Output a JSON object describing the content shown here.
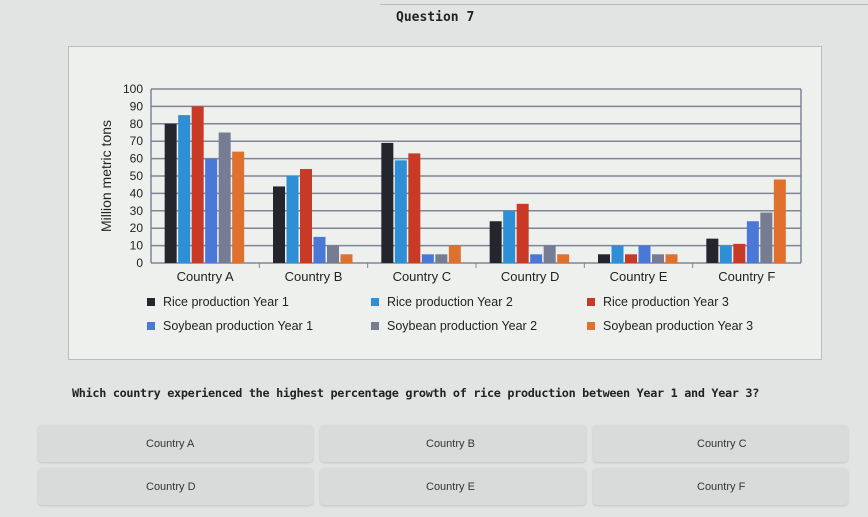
{
  "question_number": "Question 7",
  "question_text": "Which country experienced the highest percentage growth of rice production between Year 1 and Year 3?",
  "options": [
    "Country A",
    "Country B",
    "Country C",
    "Country D",
    "Country E",
    "Country F"
  ],
  "chart_data": {
    "type": "bar",
    "ylabel": "Million metric tons",
    "ylim": [
      0,
      100
    ],
    "yticks": [
      0,
      10,
      20,
      30,
      40,
      50,
      60,
      70,
      80,
      90,
      100
    ],
    "grid": true,
    "legend_position": "bottom",
    "categories": [
      "Country A",
      "Country B",
      "Country C",
      "Country D",
      "Country E",
      "Country F"
    ],
    "series": [
      {
        "name": "Rice production Year 1",
        "color": "#25252e",
        "values": [
          80,
          44,
          69,
          24,
          5,
          14
        ]
      },
      {
        "name": "Rice production Year 2",
        "color": "#2f8fd6",
        "values": [
          85,
          50,
          59,
          30,
          10,
          10
        ]
      },
      {
        "name": "Rice production Year 3",
        "color": "#c83a26",
        "values": [
          90,
          54,
          63,
          34,
          5,
          11
        ]
      },
      {
        "name": "Soybean production Year 1",
        "color": "#4a78d6",
        "values": [
          60,
          15,
          5,
          5,
          10,
          24
        ]
      },
      {
        "name": "Soybean production Year 2",
        "color": "#767c92",
        "values": [
          75,
          10,
          5,
          10,
          5,
          29
        ]
      },
      {
        "name": "Soybean production Year 3",
        "color": "#e0702e",
        "values": [
          64,
          5,
          10,
          5,
          5,
          48
        ]
      }
    ]
  }
}
